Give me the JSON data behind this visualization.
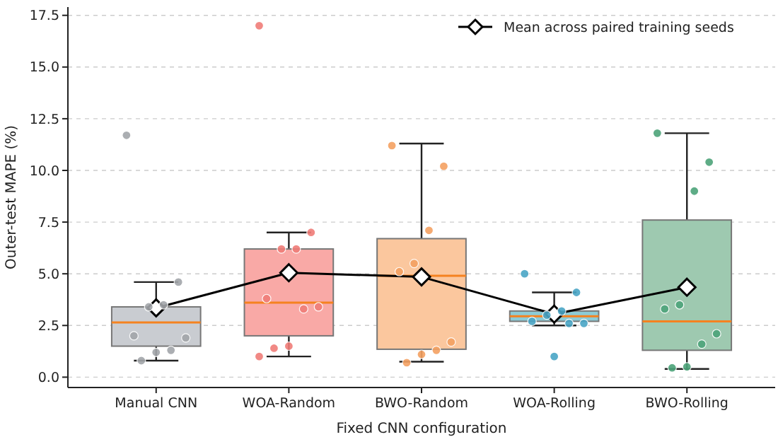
{
  "chart_data": {
    "type": "box",
    "xlabel": "Fixed CNN configuration",
    "ylabel": "Outer-test MAPE (%)",
    "categories": [
      "Manual CNN",
      "WOA-Random",
      "BWO-Random",
      "WOA-Rolling",
      "BWO-Rolling"
    ],
    "colors": [
      "#c9ccd1",
      "#f9a9a6",
      "#fbc79e",
      "#8ccbd6",
      "#9ec9b0"
    ],
    "boxes": [
      {
        "low": 0.8,
        "q1": 1.5,
        "median": 2.65,
        "q3": 3.4,
        "high": 4.6
      },
      {
        "low": 1.0,
        "q1": 2.0,
        "median": 3.6,
        "q3": 6.2,
        "high": 7.0
      },
      {
        "low": 0.75,
        "q1": 1.35,
        "median": 4.9,
        "q3": 6.7,
        "high": 11.3
      },
      {
        "low": 2.5,
        "q1": 2.7,
        "median": 2.95,
        "q3": 3.2,
        "high": 4.1
      },
      {
        "low": 0.4,
        "q1": 1.3,
        "median": 2.7,
        "q3": 7.6,
        "high": 11.8
      }
    ],
    "series": [
      {
        "type": "scatter",
        "marker": "circle",
        "x": [
          "Manual CNN",
          "Manual CNN",
          "Manual CNN",
          "Manual CNN",
          "Manual CNN",
          "Manual CNN",
          "Manual CNN",
          "Manual CNN",
          "Manual CNN",
          "WOA-Random",
          "WOA-Random",
          "WOA-Random",
          "WOA-Random",
          "WOA-Random",
          "WOA-Random",
          "WOA-Random",
          "WOA-Random",
          "WOA-Random",
          "WOA-Random",
          "BWO-Random",
          "BWO-Random",
          "BWO-Random",
          "BWO-Random",
          "BWO-Random",
          "BWO-Random",
          "BWO-Random",
          "BWO-Random",
          "BWO-Random",
          "WOA-Rolling",
          "WOA-Rolling",
          "WOA-Rolling",
          "WOA-Rolling",
          "WOA-Rolling",
          "WOA-Rolling",
          "WOA-Rolling",
          "WOA-Rolling",
          "BWO-Rolling",
          "BWO-Rolling",
          "BWO-Rolling",
          "BWO-Rolling",
          "BWO-Rolling",
          "BWO-Rolling",
          "BWO-Rolling",
          "BWO-Rolling",
          "BWO-Rolling"
        ],
        "values": [
          11.7,
          4.6,
          3.5,
          3.4,
          2.0,
          1.9,
          1.3,
          1.2,
          0.8,
          17.0,
          7.0,
          6.2,
          6.2,
          3.8,
          3.4,
          3.3,
          1.5,
          1.4,
          1.0,
          11.2,
          10.2,
          7.1,
          5.5,
          5.1,
          1.7,
          1.3,
          1.1,
          0.7,
          5.0,
          4.1,
          3.2,
          3.0,
          2.7,
          2.6,
          2.6,
          1.0,
          11.8,
          10.4,
          9.0,
          3.5,
          3.3,
          2.1,
          1.6,
          0.5,
          0.45
        ],
        "colors": [
          "#a3a6aa",
          "#a3a6aa",
          "#a3a6aa",
          "#a3a6aa",
          "#a3a6aa",
          "#a3a6aa",
          "#a3a6aa",
          "#a3a6aa",
          "#a3a6aa",
          "#f07d78",
          "#f07d78",
          "#f07d78",
          "#f07d78",
          "#f07d78",
          "#f07d78",
          "#f07d78",
          "#f07d78",
          "#f07d78",
          "#f07d78",
          "#f4a162",
          "#f4a162",
          "#f4a162",
          "#f4a162",
          "#f4a162",
          "#f4a162",
          "#f4a162",
          "#f4a162",
          "#f4a162",
          "#4aa6c6",
          "#4aa6c6",
          "#4aa6c6",
          "#4aa6c6",
          "#4aa6c6",
          "#4aa6c6",
          "#4aa6c6",
          "#4aa6c6",
          "#4da47a",
          "#4da47a",
          "#4da47a",
          "#4da47a",
          "#4da47a",
          "#4da47a",
          "#4da47a",
          "#4da47a",
          "#4da47a"
        ]
      },
      {
        "type": "line",
        "name": "Mean across paired training seeds",
        "color": "#000000",
        "marker": "diamond",
        "values": [
          3.35,
          5.05,
          4.85,
          3.05,
          4.35
        ]
      }
    ],
    "ylim": [
      -0.5,
      17.9
    ],
    "yticks": [
      {
        "value": 0,
        "label": "0.0"
      },
      {
        "value": 2.5,
        "label": "2.5"
      },
      {
        "value": 5,
        "label": "5.0"
      },
      {
        "value": 7.5,
        "label": "7.5"
      },
      {
        "value": 10,
        "label": "10.0"
      },
      {
        "value": 12.5,
        "label": "12.5"
      },
      {
        "value": 15,
        "label": "15.0"
      },
      {
        "value": 17.5,
        "label": "17.5"
      }
    ],
    "grid": "y",
    "legend": "top right"
  }
}
